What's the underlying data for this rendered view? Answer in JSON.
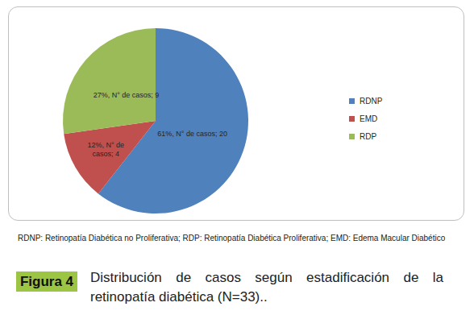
{
  "chart_data": {
    "type": "pie",
    "title": "Distribución de casos según estadificación de la retinopatía diabética (N=33)..",
    "figure_label": "Figura 4",
    "note": "RDNP: Retinopatía Diabética no Proliferativa; RDP: Retinopatía Diabética Proliferativa; EMD: Edema Macular Diabético",
    "categories": [
      "RDNP",
      "EMD",
      "RDP"
    ],
    "values": [
      20,
      4,
      9
    ],
    "value_labels": [
      "61%, N° de casos; 20",
      "12%, N° de casos; 4",
      "27%, N° de casos; 9"
    ],
    "colors": [
      "#4f81bd",
      "#c0504d",
      "#9bbb59"
    ],
    "legend": "right",
    "data_labels": true
  }
}
